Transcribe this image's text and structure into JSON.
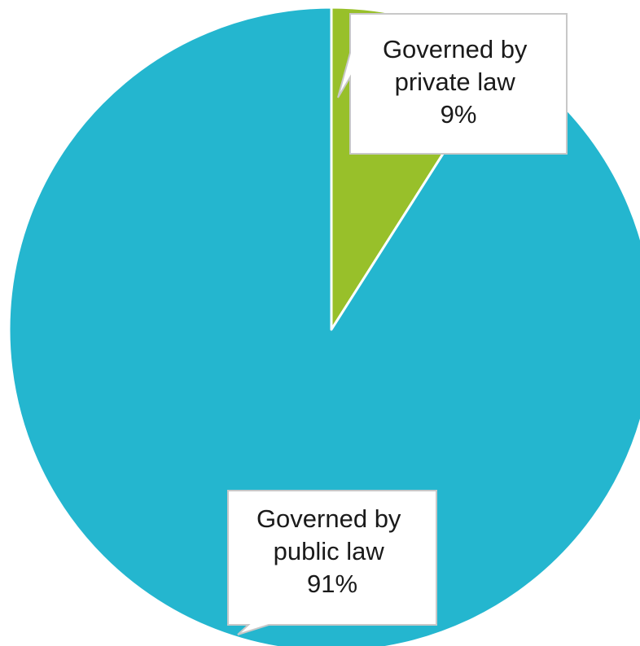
{
  "chart_data": {
    "type": "pie",
    "title": "",
    "start_angle": "12 o'clock, clockwise",
    "series": [
      {
        "values": [
          9,
          91
        ],
        "labels": [
          "Governed by private law",
          "Governed by public law"
        ],
        "percent_labels": [
          "9%",
          "91%"
        ],
        "colors": [
          "#98c02a",
          "#24b6cf"
        ]
      }
    ],
    "data_labels": [
      {
        "lines": [
          "Governed by",
          "private law",
          "9%"
        ]
      },
      {
        "lines": [
          "Governed by",
          "public law",
          "91%"
        ]
      }
    ],
    "legend": "none"
  }
}
